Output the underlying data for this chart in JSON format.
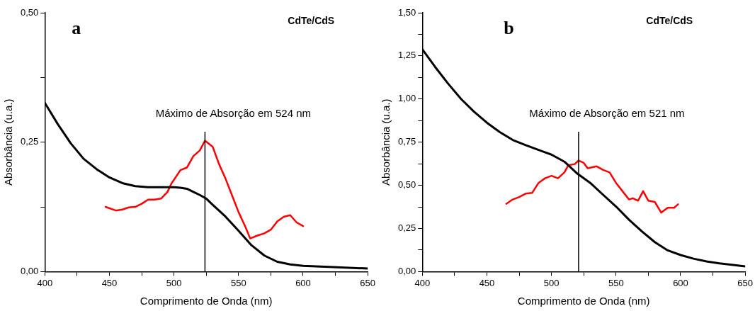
{
  "chart_data": [
    {
      "type": "line",
      "title": "a",
      "xlabel": "Comprimento de Onda (nm)",
      "ylabel": "Absorbância (u.a.)",
      "annotations": [
        "CdTe/CdS"
      ],
      "xlim": [
        400,
        650
      ],
      "xticks": [
        400,
        {
          "value": 425,
          "label": null
        },
        450,
        {
          "value": 475,
          "label": null
        },
        500,
        {
          "value": 525,
          "label": null
        },
        550,
        {
          "value": 575,
          "label": null
        },
        600,
        {
          "value": 625,
          "label": null
        },
        650
      ],
      "ylim": [
        0,
        0.5
      ],
      "yticks": [
        {
          "value": 0,
          "label": "0,00"
        },
        {
          "value": 0.125,
          "label": null
        },
        {
          "value": 0.25,
          "label": "0,25"
        },
        {
          "value": 0.375,
          "label": null
        },
        {
          "value": 0.5,
          "label": "0,50"
        }
      ],
      "ref_lines": [
        {
          "axis": "x",
          "value": 524,
          "label": "Máximo de Absorção em 524 nm",
          "color": "#000000"
        }
      ],
      "series": [
        {
          "color": "#000000",
          "x": [
            400,
            410,
            420,
            430,
            440,
            450,
            460,
            470,
            480,
            490,
            500,
            505,
            510,
            515,
            520,
            525,
            530,
            540,
            550,
            560,
            570,
            580,
            590,
            600,
            620,
            650
          ],
          "values": [
            0.326,
            0.285,
            0.248,
            0.218,
            0.198,
            0.182,
            0.171,
            0.165,
            0.163,
            0.163,
            0.163,
            0.162,
            0.16,
            0.154,
            0.148,
            0.141,
            0.129,
            0.106,
            0.079,
            0.051,
            0.031,
            0.019,
            0.014,
            0.011,
            0.009,
            0.006
          ]
        },
        {
          "color": "#ff0000",
          "x": [
            447,
            455,
            460,
            465,
            470,
            475,
            480,
            485,
            490,
            495,
            498,
            505,
            510,
            515,
            520,
            524,
            530,
            535,
            540,
            545,
            550,
            555,
            559,
            565,
            570,
            575,
            580,
            585,
            590,
            595,
            600
          ],
          "values": [
            0.125,
            0.118,
            0.12,
            0.124,
            0.125,
            0.131,
            0.139,
            0.139,
            0.141,
            0.154,
            0.17,
            0.196,
            0.201,
            0.223,
            0.234,
            0.253,
            0.241,
            0.207,
            0.179,
            0.147,
            0.115,
            0.088,
            0.064,
            0.07,
            0.074,
            0.081,
            0.097,
            0.106,
            0.109,
            0.095,
            0.088
          ]
        }
      ]
    },
    {
      "type": "line",
      "title": "b",
      "xlabel": "Comprimento de Onda (nm)",
      "ylabel": "Absorbância (u.a.)",
      "annotations": [
        "CdTe/CdS"
      ],
      "xlim": [
        400,
        650
      ],
      "xticks": [
        400,
        {
          "value": 425,
          "label": null
        },
        450,
        {
          "value": 475,
          "label": null
        },
        500,
        {
          "value": 525,
          "label": null
        },
        550,
        {
          "value": 575,
          "label": null
        },
        600,
        {
          "value": 625,
          "label": null
        },
        650
      ],
      "ylim": [
        0,
        1.5
      ],
      "yticks": [
        {
          "value": 0,
          "label": "0,00"
        },
        {
          "value": 0.125,
          "label": null
        },
        {
          "value": 0.25,
          "label": "0,25"
        },
        {
          "value": 0.375,
          "label": null
        },
        {
          "value": 0.5,
          "label": "0,50"
        },
        {
          "value": 0.625,
          "label": null
        },
        {
          "value": 0.75,
          "label": "0,75"
        },
        {
          "value": 0.875,
          "label": null
        },
        {
          "value": 1,
          "label": "1,00"
        },
        {
          "value": 1.125,
          "label": null
        },
        {
          "value": 1.25,
          "label": "1,25"
        },
        {
          "value": 1.375,
          "label": null
        },
        {
          "value": 1.5,
          "label": "1,50"
        }
      ],
      "ref_lines": [
        {
          "axis": "x",
          "value": 521,
          "label": "Máximo de Absorção em 521 nm",
          "color": "#000000"
        }
      ],
      "series": [
        {
          "color": "#000000",
          "x": [
            400,
            410,
            420,
            430,
            440,
            450,
            460,
            470,
            480,
            490,
            500,
            510,
            520,
            530,
            540,
            550,
            560,
            570,
            580,
            590,
            600,
            610,
            620,
            630,
            650
          ],
          "values": [
            1.288,
            1.185,
            1.089,
            1.0,
            0.927,
            0.863,
            0.808,
            0.763,
            0.733,
            0.705,
            0.678,
            0.637,
            0.568,
            0.514,
            0.445,
            0.377,
            0.301,
            0.233,
            0.171,
            0.123,
            0.096,
            0.075,
            0.059,
            0.048,
            0.03
          ]
        },
        {
          "color": "#ff0000",
          "x": [
            465,
            470,
            475,
            480,
            485,
            490,
            495,
            500,
            505,
            510,
            513,
            518,
            521,
            525,
            528,
            535,
            540,
            545,
            550,
            555,
            560,
            563,
            567,
            571,
            575,
            580,
            585,
            590,
            595,
            598
          ],
          "values": [
            0.393,
            0.418,
            0.432,
            0.452,
            0.456,
            0.514,
            0.541,
            0.555,
            0.541,
            0.575,
            0.616,
            0.623,
            0.644,
            0.63,
            0.599,
            0.61,
            0.589,
            0.575,
            0.514,
            0.466,
            0.418,
            0.425,
            0.411,
            0.466,
            0.411,
            0.404,
            0.342,
            0.37,
            0.37,
            0.39
          ]
        }
      ]
    }
  ]
}
